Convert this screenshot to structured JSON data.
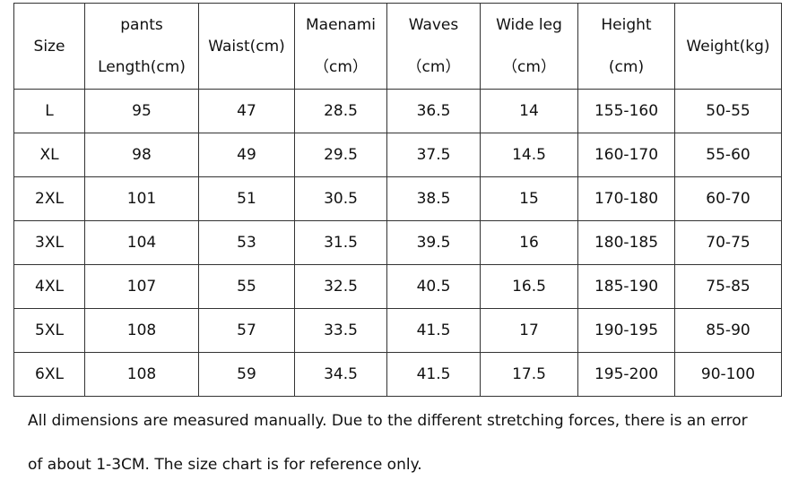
{
  "table": {
    "headers": [
      {
        "lines": [
          "Size"
        ]
      },
      {
        "lines": [
          "pants",
          "Length(cm)"
        ]
      },
      {
        "lines": [
          "Waist(cm)"
        ]
      },
      {
        "lines": [
          "Maenami",
          "（cm）"
        ]
      },
      {
        "lines": [
          "Waves",
          "（cm）"
        ]
      },
      {
        "lines": [
          "Wide leg",
          "（cm）"
        ]
      },
      {
        "lines": [
          "Height",
          "(cm)"
        ]
      },
      {
        "lines": [
          "Weight(kg)"
        ]
      }
    ],
    "rows": [
      [
        "L",
        "95",
        "47",
        "28.5",
        "36.5",
        "14",
        "155-160",
        "50-55"
      ],
      [
        "XL",
        "98",
        "49",
        "29.5",
        "37.5",
        "14.5",
        "160-170",
        "55-60"
      ],
      [
        "2XL",
        "101",
        "51",
        "30.5",
        "38.5",
        "15",
        "170-180",
        "60-70"
      ],
      [
        "3XL",
        "104",
        "53",
        "31.5",
        "39.5",
        "16",
        "180-185",
        "70-75"
      ],
      [
        "4XL",
        "107",
        "55",
        "32.5",
        "40.5",
        "16.5",
        "185-190",
        "75-85"
      ],
      [
        "5XL",
        "108",
        "57",
        "33.5",
        "41.5",
        "17",
        "190-195",
        "85-90"
      ],
      [
        "6XL",
        "108",
        "59",
        "34.5",
        "41.5",
        "17.5",
        "195-200",
        "90-100"
      ]
    ]
  },
  "notes": [
    "All dimensions are measured manually. Due to the different stretching forces, there is an error",
    "of about 1-3CM. The size chart is for reference only."
  ]
}
